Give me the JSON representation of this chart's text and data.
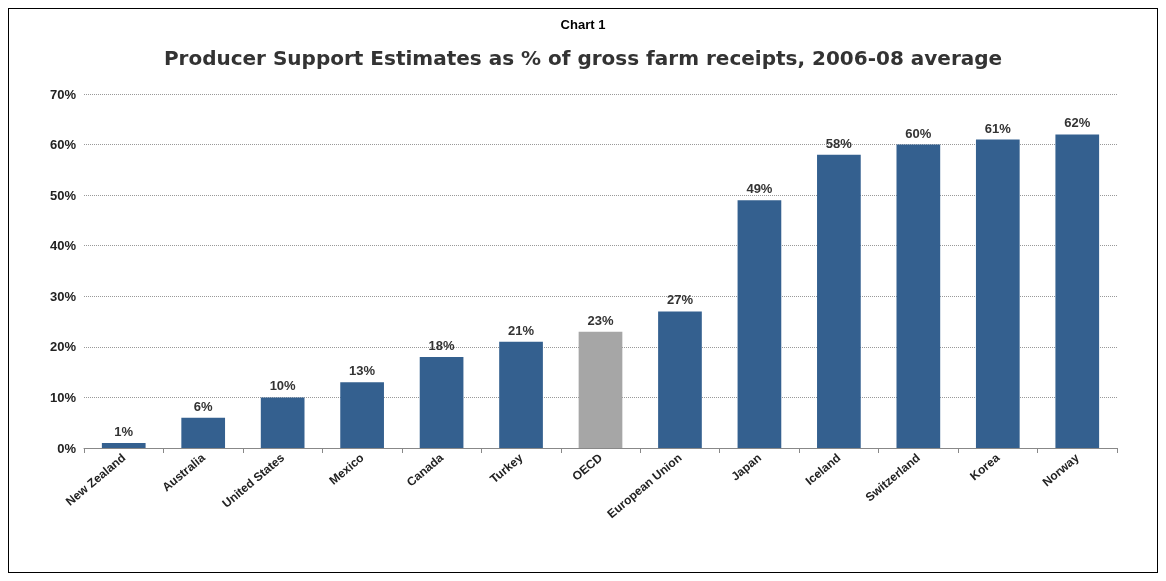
{
  "chart_data": {
    "type": "bar",
    "title": "Chart 1",
    "subtitle": "Producer Support Estimates as % of gross farm receipts, 2006-08 average",
    "categories": [
      "New Zealand",
      "Australia",
      "United States",
      "Mexico",
      "Canada",
      "Turkey",
      "OECD",
      "European Union",
      "Japan",
      "Iceland",
      "Switzerland",
      "Korea",
      "Norway"
    ],
    "values": [
      1,
      6,
      10,
      13,
      18,
      21,
      23,
      27,
      49,
      58,
      60,
      61,
      62
    ],
    "value_labels": [
      "1%",
      "6%",
      "10%",
      "13%",
      "18%",
      "21%",
      "23%",
      "27%",
      "49%",
      "58%",
      "60%",
      "61%",
      "62%"
    ],
    "colors": [
      "#34608f",
      "#34608f",
      "#34608f",
      "#34608f",
      "#34608f",
      "#34608f",
      "#a6a6a6",
      "#34608f",
      "#34608f",
      "#34608f",
      "#34608f",
      "#34608f",
      "#34608f"
    ],
    "ylim": [
      0,
      70
    ],
    "yticks": [
      {
        "value": 0,
        "label": "0%"
      },
      {
        "value": 10,
        "label": "10%"
      },
      {
        "value": 20,
        "label": "20%"
      },
      {
        "value": 30,
        "label": "30%"
      },
      {
        "value": 40,
        "label": "40%"
      },
      {
        "value": 50,
        "label": "50%"
      },
      {
        "value": 60,
        "label": "60%"
      },
      {
        "value": 70,
        "label": "70%"
      }
    ],
    "grid": "y"
  }
}
